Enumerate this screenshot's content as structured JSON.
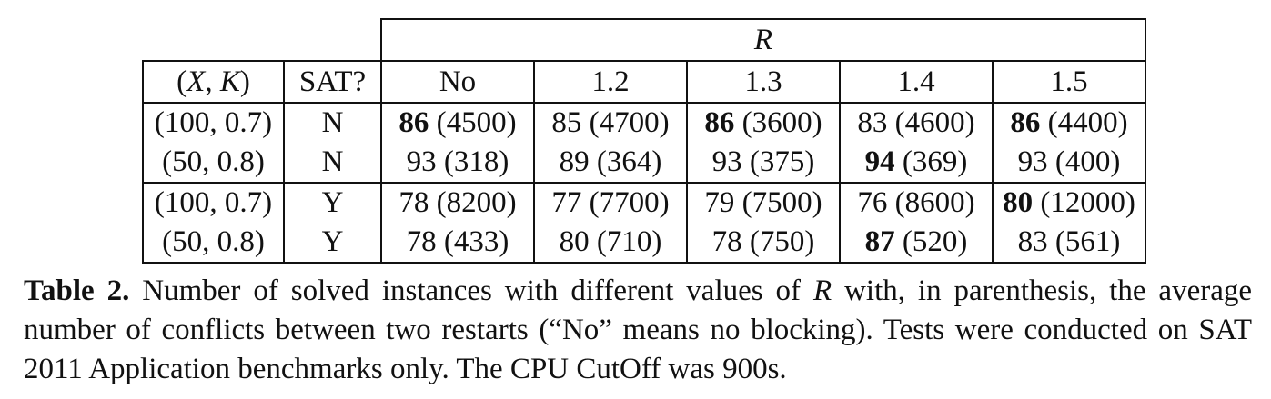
{
  "table": {
    "super_header": "R",
    "headers": {
      "xk_open": "(",
      "xk_x": "X",
      "xk_comma": ", ",
      "xk_k": "K",
      "xk_close": ")",
      "sat": "SAT?",
      "r_values": [
        "No",
        "1.2",
        "1.3",
        "1.4",
        "1.5"
      ]
    },
    "groups": [
      {
        "rows": [
          {
            "param": "(100, 0.7)",
            "sat": "N",
            "cells": [
              {
                "solved": "86",
                "conflicts": " (4500)",
                "best": true
              },
              {
                "solved": "85",
                "conflicts": " (4700)",
                "best": false
              },
              {
                "solved": "86",
                "conflicts": " (3600)",
                "best": true
              },
              {
                "solved": "83",
                "conflicts": " (4600)",
                "best": false
              },
              {
                "solved": "86",
                "conflicts": " (4400)",
                "best": true
              }
            ]
          },
          {
            "param": "(50, 0.8)",
            "sat": "N",
            "cells": [
              {
                "solved": "93",
                "conflicts": " (318)",
                "best": false
              },
              {
                "solved": "89",
                "conflicts": " (364)",
                "best": false
              },
              {
                "solved": "93",
                "conflicts": " (375)",
                "best": false
              },
              {
                "solved": "94",
                "conflicts": " (369)",
                "best": true
              },
              {
                "solved": "93",
                "conflicts": " (400)",
                "best": false
              }
            ]
          }
        ]
      },
      {
        "rows": [
          {
            "param": "(100, 0.7)",
            "sat": "Y",
            "cells": [
              {
                "solved": "78",
                "conflicts": " (8200)",
                "best": false
              },
              {
                "solved": "77",
                "conflicts": " (7700)",
                "best": false
              },
              {
                "solved": "79",
                "conflicts": " (7500)",
                "best": false
              },
              {
                "solved": "76",
                "conflicts": " (8600)",
                "best": false
              },
              {
                "solved": "80",
                "conflicts": " (12000)",
                "best": true
              }
            ]
          },
          {
            "param": "(50, 0.8)",
            "sat": "Y",
            "cells": [
              {
                "solved": "78",
                "conflicts": " (433)",
                "best": false
              },
              {
                "solved": "80",
                "conflicts": " (710)",
                "best": false
              },
              {
                "solved": "78",
                "conflicts": " (750)",
                "best": false
              },
              {
                "solved": "87",
                "conflicts": " (520)",
                "best": true
              },
              {
                "solved": "83",
                "conflicts": " (561)",
                "best": false
              }
            ]
          }
        ]
      }
    ]
  },
  "caption": {
    "label": "Table 2.",
    "text_1": " Number of solved instances with different values of ",
    "var": "R",
    "text_2": " with, in parenthesis, the average number of conflicts between two restarts (“No” means no blocking). Tests were conducted on SAT 2011 Application benchmarks only. The CPU CutOff was 900s."
  }
}
